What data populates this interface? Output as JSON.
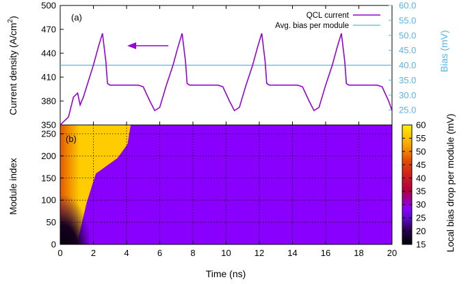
{
  "chart_data": [
    {
      "panel_label": "(a)",
      "type": "line",
      "ylabel_left": "Current density (A/cm",
      "ylabel_left_sup": "2",
      "ylabel_left_close": ")",
      "ylabel_right": "Bias (mV)",
      "ylim_left": [
        350,
        500
      ],
      "yticks_left": [
        350,
        380,
        410,
        440,
        470,
        500
      ],
      "ylim_right": [
        20,
        60
      ],
      "yticks_right": [
        "25.0",
        "30.0",
        "35.0",
        "40.0",
        "45.0",
        "50.0",
        "55.0",
        "60.0"
      ],
      "xlim": [
        0,
        20
      ],
      "legend_position": "top-right",
      "colors": {
        "current": "#9400d3",
        "bias": "#56b4e9"
      },
      "series": [
        {
          "name": "QCL current",
          "axis": "left",
          "x": [
            0,
            0.5,
            0.8,
            1.05,
            1.2,
            1.4,
            1.7,
            2.0,
            2.3,
            2.55,
            2.75,
            2.85,
            3.0,
            4.7,
            5.0,
            5.4,
            5.7,
            6.0,
            6.4,
            6.8,
            7.1,
            7.35,
            7.55,
            7.65,
            7.8,
            9.5,
            9.8,
            10.2,
            10.5,
            10.8,
            11.2,
            11.6,
            11.9,
            12.15,
            12.35,
            12.45,
            12.6,
            14.3,
            14.6,
            15.0,
            15.3,
            15.6,
            16.0,
            16.4,
            16.7,
            16.95,
            17.15,
            17.25,
            17.4,
            19.1,
            19.4,
            19.8,
            20.0
          ],
          "values": [
            350,
            360,
            385,
            390,
            375,
            385,
            405,
            425,
            448,
            465,
            430,
            402,
            400,
            400,
            398,
            380,
            368,
            372,
            400,
            425,
            448,
            465,
            430,
            402,
            400,
            400,
            398,
            380,
            368,
            372,
            400,
            425,
            448,
            465,
            430,
            402,
            400,
            400,
            398,
            380,
            368,
            372,
            400,
            425,
            448,
            465,
            430,
            402,
            400,
            400,
            398,
            380,
            368
          ]
        },
        {
          "name": "Avg. bias per module",
          "axis": "right",
          "x": [
            0,
            20
          ],
          "values": [
            40,
            40
          ]
        }
      ]
    },
    {
      "panel_label": "(b)",
      "type": "heatmap",
      "xlabel": "Time (ns)",
      "ylabel": "Module index",
      "xlim": [
        0,
        20
      ],
      "xticks": [
        0,
        2,
        4,
        6,
        8,
        10,
        12,
        14,
        16,
        18,
        20
      ],
      "ylim": [
        0,
        270
      ],
      "yticks": [
        0,
        50,
        100,
        150,
        200,
        250
      ],
      "colorbar_label": "Local bias drop per module (mV)",
      "colorbar_range": [
        15,
        60
      ],
      "colorbar_ticks": [
        15,
        20,
        25,
        30,
        35,
        40,
        45,
        50,
        55,
        60
      ],
      "low_field_value_mv": 21,
      "high_field_value_mv": 56,
      "domain_bands": [
        {
          "boundary_a_x": [
            1.0,
            1.6,
            2.15,
            3.45,
            4.9
          ],
          "boundary_b_x": [
            4.85,
            6.05
          ],
          "boundary_b_y": [
            0,
            270
          ]
        },
        {
          "boundary_a_x": [
            5.6,
            6.2,
            6.75,
            8.05,
            9.5
          ],
          "boundary_b_x": [
            9.65,
            10.85
          ],
          "boundary_b_y": [
            0,
            270
          ]
        },
        {
          "boundary_a_x": [
            10.4,
            11.0,
            11.55,
            12.85,
            14.3
          ],
          "boundary_b_x": [
            14.45,
            15.65
          ],
          "boundary_b_y": [
            0,
            270
          ]
        },
        {
          "boundary_a_x": [
            15.2,
            15.8,
            16.35,
            17.65,
            19.1
          ],
          "boundary_b_x": [
            19.25,
            20.45
          ],
          "boundary_b_y": [
            0,
            270
          ]
        },
        {
          "boundary_a_x": [
            20.0
          ],
          "boundary_b_x": [
            3.05,
            4.25
          ],
          "boundary_b_y": [
            0,
            270
          ]
        }
      ],
      "band_boundary_y": [
        0,
        95,
        160,
        195,
        270
      ]
    }
  ]
}
